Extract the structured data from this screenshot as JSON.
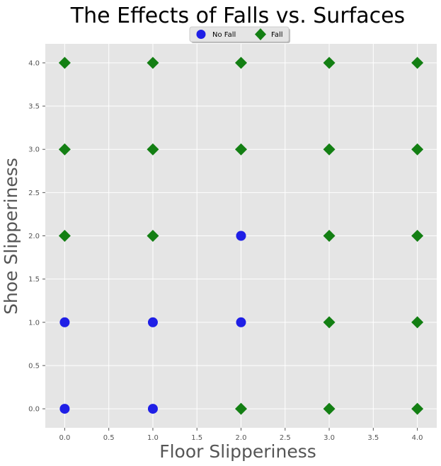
{
  "chart_data": {
    "type": "scatter",
    "title": "The Effects of Falls vs. Surfaces",
    "xlabel": "Floor Slipperiness",
    "ylabel": "Shoe Slipperiness",
    "xlim": [
      -0.22,
      4.22
    ],
    "ylim": [
      -0.22,
      4.22
    ],
    "xticks": [
      0.0,
      0.5,
      1.0,
      1.5,
      2.0,
      2.5,
      3.0,
      3.5,
      4.0
    ],
    "yticks": [
      0.0,
      0.5,
      1.0,
      1.5,
      2.0,
      2.5,
      3.0,
      3.5,
      4.0
    ],
    "xtick_labels": [
      "0.0",
      "0.5",
      "1.0",
      "1.5",
      "2.0",
      "2.5",
      "3.0",
      "3.5",
      "4.0"
    ],
    "ytick_labels": [
      "0.0",
      "0.5",
      "1.0",
      "1.5",
      "2.0",
      "2.5",
      "3.0",
      "3.5",
      "4.0"
    ],
    "grid": true,
    "legend_position": "top-center",
    "series": [
      {
        "name": "No Fall",
        "marker": "circle",
        "color": "#1f1fe6",
        "points": [
          [
            0,
            0
          ],
          [
            1,
            0
          ],
          [
            0,
            1
          ],
          [
            1,
            1
          ],
          [
            2,
            1
          ],
          [
            2,
            2
          ]
        ]
      },
      {
        "name": "Fall",
        "marker": "diamond",
        "color": "#137f13",
        "points": [
          [
            2,
            0
          ],
          [
            3,
            0
          ],
          [
            4,
            0
          ],
          [
            3,
            1
          ],
          [
            4,
            1
          ],
          [
            0,
            2
          ],
          [
            1,
            2
          ],
          [
            3,
            2
          ],
          [
            4,
            2
          ],
          [
            0,
            3
          ],
          [
            1,
            3
          ],
          [
            2,
            3
          ],
          [
            3,
            3
          ],
          [
            4,
            3
          ],
          [
            0,
            4
          ],
          [
            1,
            4
          ],
          [
            2,
            4
          ],
          [
            3,
            4
          ],
          [
            4,
            4
          ]
        ]
      }
    ]
  }
}
